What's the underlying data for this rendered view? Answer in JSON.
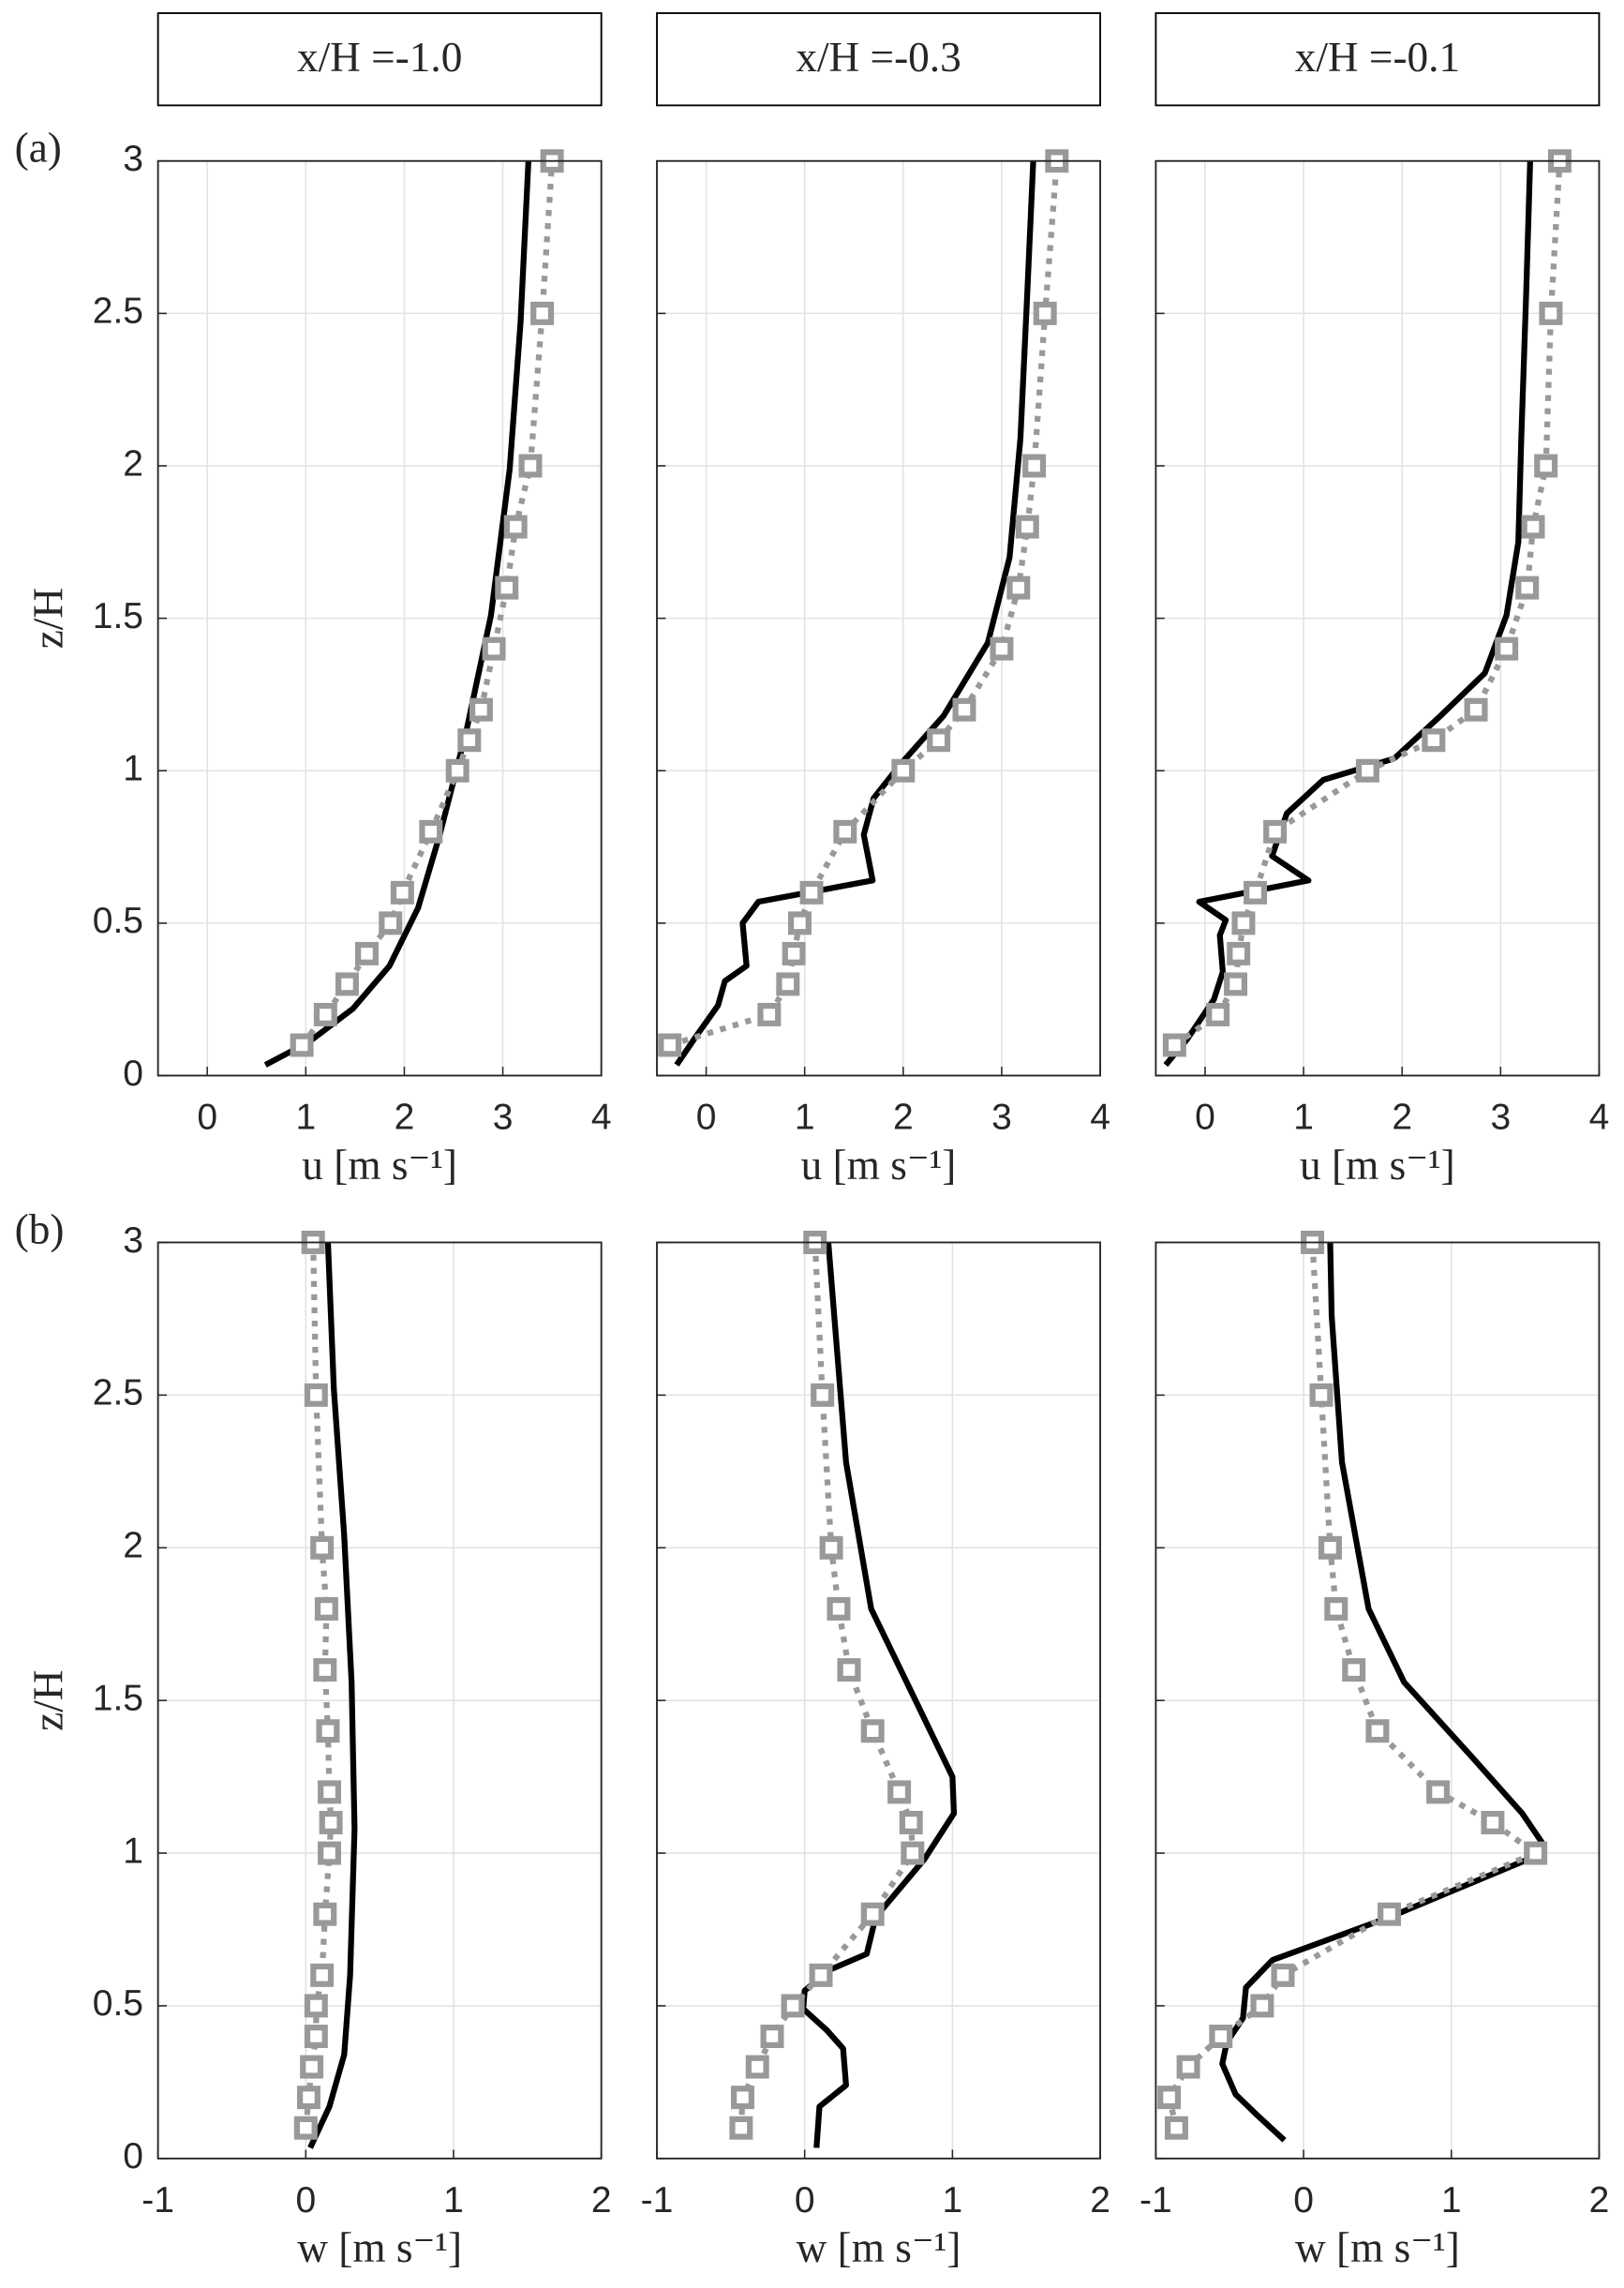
{
  "chart_data": [
    {
      "type": "line",
      "title": "x/H =-1.0",
      "panel_label": "(a)",
      "xlabel": "u [m s⁻¹]",
      "ylabel": "z/H",
      "xlim": [
        -0.5,
        4
      ],
      "xticks": [
        0,
        1,
        2,
        3,
        4
      ],
      "ylim": [
        0,
        3
      ],
      "yticks": [
        0,
        0.5,
        1,
        1.5,
        2,
        2.5,
        3
      ],
      "grid": true,
      "ytick_labels": true,
      "series": [
        {
          "color": "#000000",
          "style": "solid",
          "x": [
            0.59,
            1.03,
            1.48,
            1.85,
            2.14,
            2.36,
            2.63,
            2.88,
            3.07,
            3.18,
            3.26
          ],
          "y": [
            0.035,
            0.11,
            0.22,
            0.36,
            0.55,
            0.79,
            1.13,
            1.51,
            1.99,
            2.47,
            3.0
          ]
        },
        {
          "color": "#999999",
          "style": "dotted",
          "marker": "square",
          "x": [
            0.96,
            1.2,
            1.42,
            1.62,
            1.86,
            1.98,
            2.27,
            2.54,
            2.66,
            2.78,
            2.91,
            3.04,
            3.13,
            3.28,
            3.4,
            3.5
          ],
          "y": [
            0.1,
            0.2,
            0.3,
            0.4,
            0.5,
            0.6,
            0.8,
            1.0,
            1.1,
            1.2,
            1.4,
            1.6,
            1.8,
            2.0,
            2.5,
            3.0
          ]
        }
      ]
    },
    {
      "type": "line",
      "title": "x/H =-0.3",
      "xlabel": "u [m s⁻¹]",
      "xlim": [
        -0.5,
        4
      ],
      "xticks": [
        0,
        1,
        2,
        3,
        4
      ],
      "ylim": [
        0,
        3
      ],
      "yticks": [
        0,
        0.5,
        1,
        1.5,
        2,
        2.5,
        3
      ],
      "grid": true,
      "ytick_labels": false,
      "series": [
        {
          "color": "#000000",
          "style": "solid",
          "x": [
            -0.3,
            -0.1,
            0.12,
            0.19,
            0.41,
            0.37,
            0.53,
            1.69,
            1.6,
            1.7,
            1.97,
            2.41,
            2.86,
            3.08,
            3.19,
            3.26,
            3.32
          ],
          "y": [
            0.035,
            0.13,
            0.23,
            0.31,
            0.36,
            0.5,
            0.57,
            0.64,
            0.79,
            0.91,
            1.02,
            1.18,
            1.42,
            1.7,
            2.09,
            2.57,
            3.0
          ]
        },
        {
          "color": "#999999",
          "style": "dotted",
          "marker": "square",
          "x": [
            -0.37,
            0.64,
            0.83,
            0.89,
            0.95,
            1.07,
            1.41,
            2.0,
            2.36,
            2.62,
            3.0,
            3.17,
            3.26,
            3.33,
            3.44,
            3.56
          ],
          "y": [
            0.1,
            0.2,
            0.3,
            0.4,
            0.5,
            0.6,
            0.8,
            1.0,
            1.1,
            1.2,
            1.4,
            1.6,
            1.8,
            2.0,
            2.5,
            3.0
          ]
        }
      ]
    },
    {
      "type": "line",
      "title": "x/H =-0.1",
      "xlabel": "u [m s⁻¹]",
      "xlim": [
        -0.5,
        4
      ],
      "xticks": [
        0,
        1,
        2,
        3,
        4
      ],
      "ylim": [
        0,
        3
      ],
      "yticks": [
        0,
        0.5,
        1,
        1.5,
        2,
        2.5,
        3
      ],
      "grid": true,
      "ytick_labels": false,
      "series": [
        {
          "color": "#000000",
          "style": "solid",
          "x": [
            -0.4,
            -0.18,
            0.09,
            0.18,
            0.15,
            0.21,
            -0.06,
            1.05,
            0.68,
            0.83,
            1.2,
            1.92,
            2.39,
            2.84,
            3.06,
            3.18,
            3.21,
            3.26,
            3.3
          ],
          "y": [
            0.035,
            0.12,
            0.25,
            0.34,
            0.46,
            0.51,
            0.57,
            0.64,
            0.72,
            0.86,
            0.97,
            1.04,
            1.18,
            1.32,
            1.51,
            1.75,
            2.09,
            2.57,
            3.0
          ]
        },
        {
          "color": "#999999",
          "style": "dotted",
          "marker": "square",
          "x": [
            -0.31,
            0.13,
            0.31,
            0.34,
            0.39,
            0.51,
            0.71,
            1.65,
            2.32,
            2.75,
            3.06,
            3.27,
            3.33,
            3.46,
            3.51,
            3.6
          ],
          "y": [
            0.1,
            0.2,
            0.3,
            0.4,
            0.5,
            0.6,
            0.8,
            1.0,
            1.1,
            1.2,
            1.4,
            1.6,
            1.8,
            2.0,
            2.5,
            3.0
          ]
        }
      ]
    },
    {
      "type": "line",
      "panel_label": "(b)",
      "xlabel": "w [m s⁻¹]",
      "ylabel": "z/H",
      "xlim": [
        -1,
        2
      ],
      "xticks": [
        -1,
        0,
        1,
        2
      ],
      "ylim": [
        0,
        3
      ],
      "yticks": [
        0,
        0.5,
        1,
        1.5,
        2,
        2.5,
        3
      ],
      "grid": true,
      "ytick_labels": true,
      "series": [
        {
          "color": "#000000",
          "style": "solid",
          "x": [
            0.03,
            0.16,
            0.26,
            0.3,
            0.33,
            0.31,
            0.26,
            0.19,
            0.15
          ],
          "y": [
            0.035,
            0.17,
            0.34,
            0.6,
            1.08,
            1.56,
            2.04,
            2.52,
            3.0
          ]
        },
        {
          "color": "#999999",
          "style": "dotted",
          "marker": "square",
          "x": [
            0.0,
            0.02,
            0.04,
            0.07,
            0.07,
            0.11,
            0.13,
            0.16,
            0.17,
            0.16,
            0.15,
            0.13,
            0.14,
            0.11,
            0.07,
            0.05
          ],
          "y": [
            0.1,
            0.2,
            0.3,
            0.4,
            0.5,
            0.6,
            0.8,
            1.0,
            1.1,
            1.2,
            1.4,
            1.6,
            1.8,
            2.0,
            2.5,
            3.0
          ]
        }
      ]
    },
    {
      "type": "line",
      "xlabel": "w [m s⁻¹]",
      "xlim": [
        -1,
        2
      ],
      "xticks": [
        -1,
        0,
        1,
        2
      ],
      "ylim": [
        0,
        3
      ],
      "yticks": [
        0,
        0.5,
        1,
        1.5,
        2,
        2.5,
        3
      ],
      "grid": true,
      "ytick_labels": false,
      "series": [
        {
          "color": "#000000",
          "style": "solid",
          "x": [
            0.08,
            0.1,
            0.28,
            0.26,
            0.15,
            -0.01,
            0.0,
            0.18,
            0.42,
            0.48,
            0.81,
            1.01,
            1.0,
            0.74,
            0.45,
            0.28,
            0.2,
            0.16
          ],
          "y": [
            0.035,
            0.17,
            0.24,
            0.36,
            0.42,
            0.49,
            0.55,
            0.62,
            0.67,
            0.79,
            0.98,
            1.13,
            1.25,
            1.51,
            1.8,
            2.28,
            2.76,
            3.0
          ]
        },
        {
          "color": "#999999",
          "style": "dotted",
          "marker": "square",
          "x": [
            -0.43,
            -0.42,
            -0.32,
            -0.22,
            -0.08,
            0.11,
            0.46,
            0.73,
            0.72,
            0.64,
            0.46,
            0.3,
            0.23,
            0.18,
            0.12,
            0.07
          ],
          "y": [
            0.1,
            0.2,
            0.3,
            0.4,
            0.5,
            0.6,
            0.8,
            1.0,
            1.1,
            1.2,
            1.4,
            1.6,
            1.8,
            2.0,
            2.5,
            3.0
          ]
        }
      ]
    },
    {
      "type": "line",
      "xlabel": "w [m s⁻¹]",
      "xlim": [
        -1,
        2
      ],
      "xticks": [
        -1,
        0,
        1,
        2
      ],
      "ylim": [
        0,
        3
      ],
      "yticks": [
        0,
        0.5,
        1,
        1.5,
        2,
        2.5,
        3
      ],
      "grid": true,
      "ytick_labels": false,
      "series": [
        {
          "color": "#000000",
          "style": "solid",
          "x": [
            -0.13,
            -0.31,
            -0.46,
            -0.55,
            -0.52,
            -0.41,
            -0.39,
            -0.21,
            0.58,
            1.52,
            1.62,
            1.48,
            1.13,
            0.68,
            0.44,
            0.26,
            0.19,
            0.18
          ],
          "y": [
            0.06,
            0.14,
            0.21,
            0.31,
            0.38,
            0.46,
            0.56,
            0.65,
            0.79,
            0.98,
            1.03,
            1.13,
            1.32,
            1.56,
            1.8,
            2.28,
            2.76,
            3.0
          ]
        },
        {
          "color": "#999999",
          "style": "dotted",
          "marker": "square",
          "x": [
            -0.86,
            -0.91,
            -0.78,
            -0.56,
            -0.28,
            -0.14,
            0.58,
            1.57,
            1.28,
            0.91,
            0.5,
            0.34,
            0.22,
            0.18,
            0.12,
            0.06
          ],
          "y": [
            0.1,
            0.2,
            0.3,
            0.4,
            0.5,
            0.6,
            0.8,
            1.0,
            1.1,
            1.2,
            1.4,
            1.6,
            1.8,
            2.0,
            2.5,
            3.0
          ]
        }
      ]
    }
  ]
}
